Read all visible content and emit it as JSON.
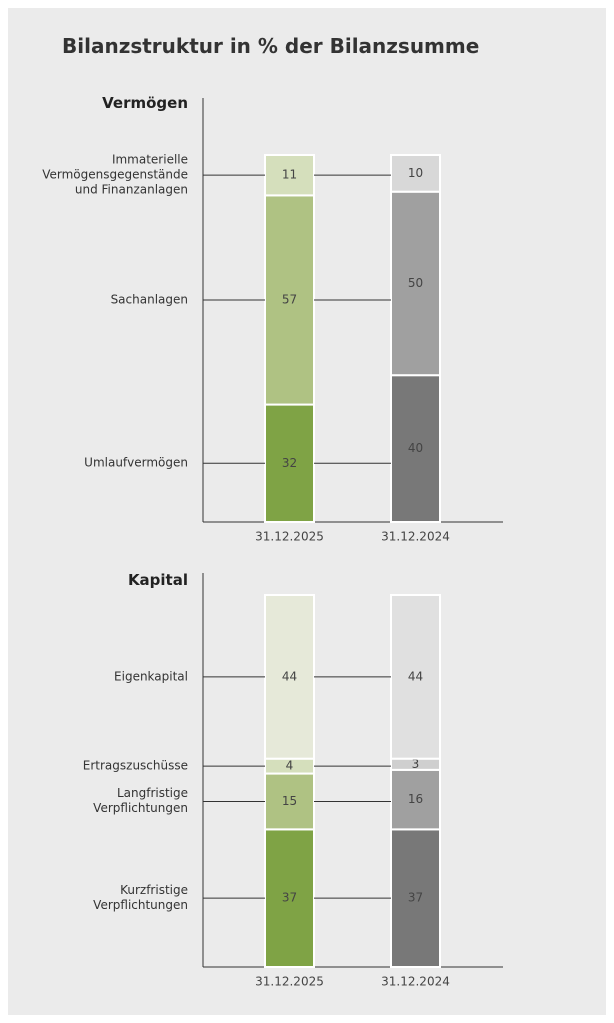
{
  "title": "Bilanzstruktur in % der Bilanzsumme",
  "chart_data": [
    {
      "type": "stacked-bar",
      "title": "Vermögen",
      "categories": [
        "31.12.2025",
        "31.12.2024"
      ],
      "ylim": [
        0,
        100
      ],
      "series": [
        {
          "name": "Umlaufvermögen",
          "color": [
            "#7fa345",
            "#787878"
          ],
          "values": [
            32,
            40
          ]
        },
        {
          "name": "Sachanlagen",
          "color": [
            "#afc283",
            "#a0a0a0"
          ],
          "values": [
            57,
            50
          ]
        },
        {
          "name": "Immaterielle\nVermögensgegenstände\nund Finanzanlagen",
          "color": [
            "#d5dfbc",
            "#d8d8d8"
          ],
          "values": [
            11,
            10
          ]
        }
      ]
    },
    {
      "type": "stacked-bar",
      "title": "Kapital",
      "categories": [
        "31.12.2025",
        "31.12.2024"
      ],
      "ylim": [
        0,
        100
      ],
      "series": [
        {
          "name": "Kurzfristige\nVerpflichtungen",
          "color": [
            "#7fa345",
            "#787878"
          ],
          "values": [
            37,
            37
          ]
        },
        {
          "name": "Langfristige\nVerpflichtungen",
          "color": [
            "#afc283",
            "#a0a0a0"
          ],
          "values": [
            15,
            16
          ]
        },
        {
          "name": "Ertragszuschüsse",
          "color": [
            "#d5dfbc",
            "#cfcfcf"
          ],
          "values": [
            4,
            3
          ]
        },
        {
          "name": "Eigenkapital",
          "color": [
            "#e6e9d9",
            "#e0e0e0"
          ],
          "values": [
            44,
            44
          ]
        }
      ]
    }
  ]
}
